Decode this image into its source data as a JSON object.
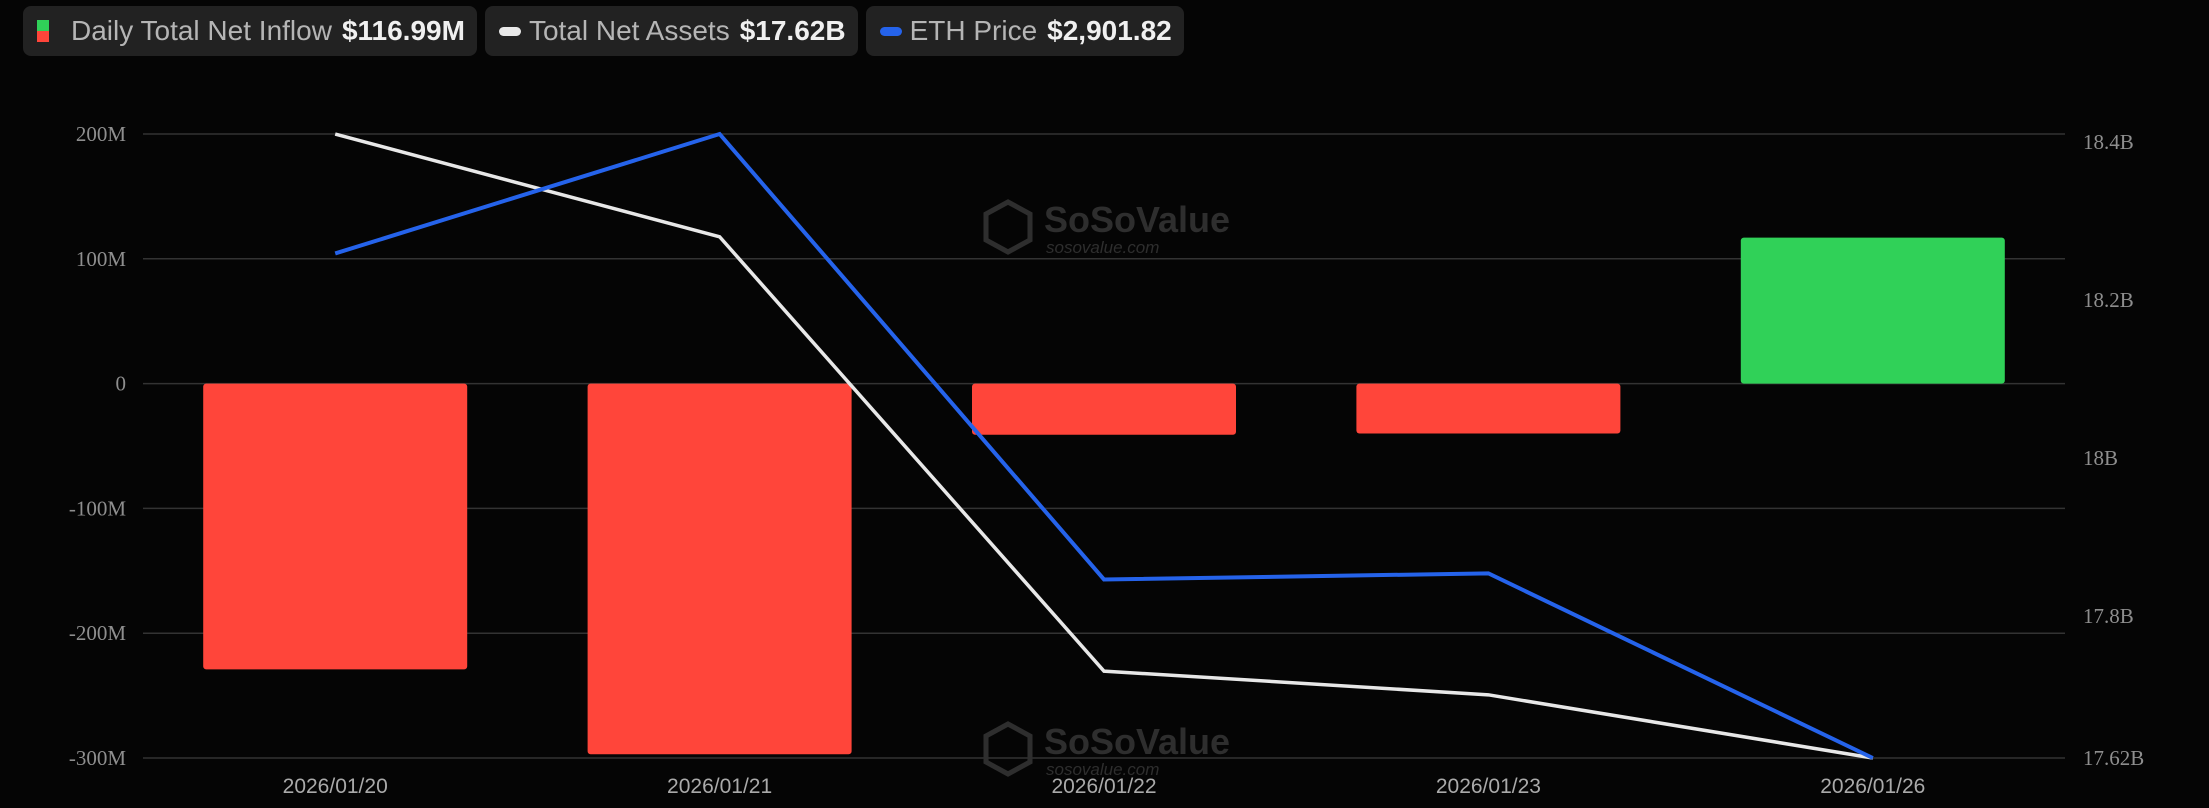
{
  "legend": [
    {
      "label": "Daily Total Net Inflow",
      "value": "$116.99M",
      "icon": "bar-swatch-icon",
      "colors": [
        "#30d158",
        "#ff453a"
      ]
    },
    {
      "label": "Total Net Assets",
      "value": "$17.62B",
      "icon": "line-swatch-icon",
      "color": "#e8e8e8"
    },
    {
      "label": "ETH Price",
      "value": "$2,901.82",
      "icon": "line-swatch-icon",
      "color": "#2563eb"
    }
  ],
  "watermark": {
    "brand": "SoSoValue",
    "url": "sosovalue.com"
  },
  "chart_data": {
    "type": "bar",
    "categories": [
      "2026/01/20",
      "2026/01/21",
      "2026/01/22",
      "2026/01/23",
      "2026/01/26"
    ],
    "left_axis": {
      "ticks": [
        200,
        100,
        0,
        -100,
        -200,
        -300
      ],
      "tick_labels": [
        "200M",
        "100M",
        "0",
        "-100M",
        "-200M",
        "-300M"
      ],
      "range": [
        -300,
        200
      ],
      "unit": "M USD"
    },
    "right_axis": {
      "ticks": [
        18.4,
        18.2,
        18.0,
        17.8,
        17.62
      ],
      "tick_labels": [
        "18.4B",
        "18.2B",
        "18B",
        "17.8B",
        "17.62B"
      ],
      "range": [
        17.62,
        18.4
      ],
      "unit": "B USD"
    },
    "grid": true,
    "legend_position": "top-left",
    "series": [
      {
        "name": "Daily Total Net Inflow",
        "type": "bar",
        "axis": "left",
        "values": [
          -229,
          -297,
          -41,
          -40,
          116.99
        ],
        "positive_color": "#30d158",
        "negative_color": "#ff453a"
      },
      {
        "name": "Total Net Assets",
        "type": "line",
        "axis": "right",
        "values": [
          18.41,
          18.28,
          17.73,
          17.7,
          17.62
        ],
        "color": "#e8e8e8"
      },
      {
        "name": "ETH Price",
        "type": "line",
        "axis": "hidden",
        "values": [
          3151,
          3210,
          2990,
          2993,
          2901.82
        ],
        "range": [
          2901.82,
          3210
        ],
        "color": "#2563eb"
      }
    ]
  }
}
